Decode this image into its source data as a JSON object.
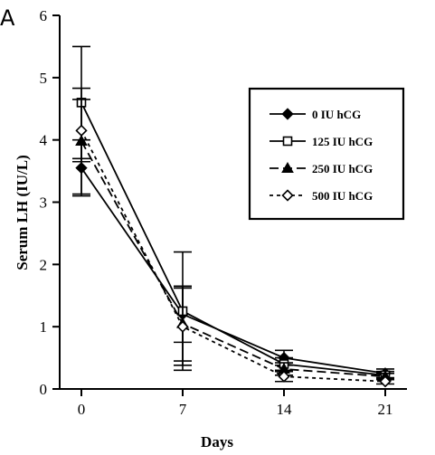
{
  "panel_label": "A",
  "chart_data": {
    "type": "line",
    "xlabel": "Days",
    "ylabel": "Serum LH (IU/L)",
    "x": [
      0,
      7,
      14,
      21
    ],
    "x_ticks": [
      "0",
      "7",
      "14",
      "21"
    ],
    "y_ticks": [
      "0",
      "1",
      "2",
      "3",
      "4",
      "5",
      "6"
    ],
    "ylim": [
      0,
      6
    ],
    "grid": false,
    "legend_position": "top-right",
    "series": [
      {
        "name": "0 IU hCG",
        "marker": "filled-diamond",
        "line_style": "solid",
        "values": [
          3.55,
          1.2,
          0.5,
          0.25
        ],
        "errors": [
          0.45,
          0.45,
          0.12,
          0.07
        ]
      },
      {
        "name": "125 IU hCG",
        "marker": "open-square",
        "line_style": "solid",
        "values": [
          4.6,
          1.25,
          0.4,
          0.22
        ],
        "errors": [
          0.9,
          0.95,
          0.1,
          0.06
        ]
      },
      {
        "name": "250 IU hCG",
        "marker": "filled-triangle",
        "line_style": "long-dash",
        "values": [
          3.98,
          1.05,
          0.32,
          0.2
        ],
        "errors": [
          0.85,
          0.6,
          0.1,
          0.05
        ]
      },
      {
        "name": "500 IU hCG",
        "marker": "open-diamond",
        "line_style": "short-dash",
        "values": [
          4.15,
          1.0,
          0.2,
          0.12
        ],
        "errors": [
          0.5,
          0.62,
          0.08,
          0.04
        ]
      }
    ]
  }
}
